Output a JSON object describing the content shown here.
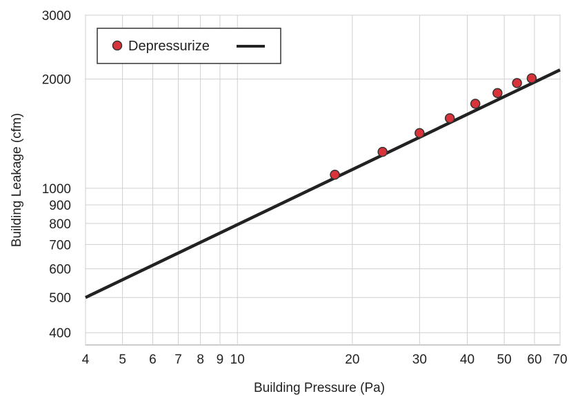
{
  "chart_data": {
    "type": "line",
    "xlabel": "Building Pressure (Pa)",
    "ylabel": "Building Leakage (cfm)",
    "x_scale": "log",
    "y_scale": "log",
    "xlim": [
      4,
      70
    ],
    "ylim": [
      370,
      3000
    ],
    "x_ticks": [
      4,
      5,
      6,
      7,
      8,
      9,
      10,
      20,
      30,
      40,
      50,
      60,
      70
    ],
    "x_tick_labels": [
      "4",
      "5",
      "6",
      "7",
      "8",
      "9",
      "10",
      "20",
      "30",
      "40",
      "50",
      "60",
      "70"
    ],
    "y_ticks": [
      400,
      500,
      600,
      700,
      800,
      900,
      1000,
      2000,
      3000
    ],
    "y_tick_labels": [
      "400",
      "500",
      "600",
      "700",
      "800",
      "900",
      "1000",
      "2000",
      "3000"
    ],
    "grid": true,
    "legend": {
      "placement": "top-left",
      "entries": [
        "Depressurize"
      ]
    },
    "series": [
      {
        "name": "Depressurize",
        "kind": "scatter",
        "color": "#d8323a",
        "x": [
          18,
          24,
          30,
          36,
          42,
          48,
          54,
          59
        ],
        "y": [
          1090,
          1260,
          1420,
          1560,
          1710,
          1830,
          1950,
          2010
        ]
      },
      {
        "kind": "line",
        "color": "#222222",
        "x": [
          4,
          70
        ],
        "y": [
          500,
          2120
        ]
      }
    ]
  }
}
